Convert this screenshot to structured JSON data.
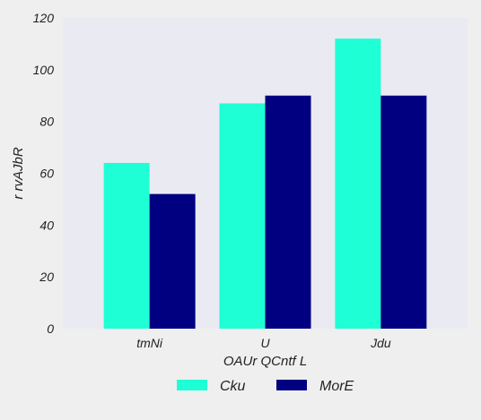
{
  "chart_data": {
    "type": "bar",
    "title": "",
    "xlabel": "OAUr QCntf L",
    "ylabel": "r rvAJbR",
    "categories": [
      "tmNi",
      "U",
      "Jdu"
    ],
    "series": [
      {
        "name": "Cku",
        "values": [
          64,
          87,
          112
        ],
        "color": "#1fffd6"
      },
      {
        "name": "MorE",
        "values": [
          52,
          90,
          90
        ],
        "color": "#000080"
      }
    ],
    "ylim": [
      0,
      120
    ],
    "yticks": [
      0,
      20,
      40,
      60,
      80,
      100,
      120
    ],
    "grid": false,
    "legend": "bottom-center",
    "plot_background": "#eaeaf2"
  }
}
